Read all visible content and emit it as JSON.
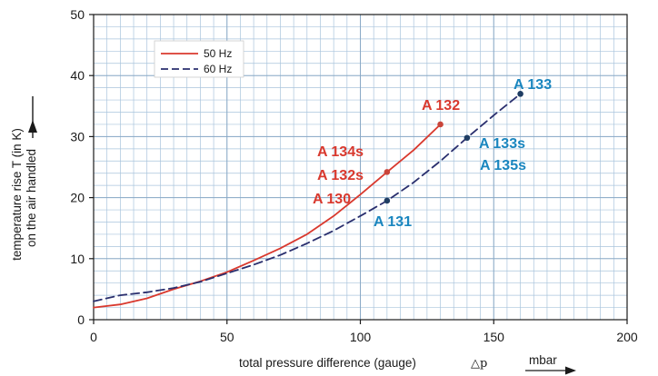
{
  "chart_data": {
    "type": "line",
    "title": "",
    "xlabel": "total pressure difference (gauge)",
    "xlabel_symbol": "△p",
    "xunit": "mbar",
    "ylabel_line1": "temperature rise T (in K)",
    "ylabel_line2": "on the air handled",
    "xlim": [
      0,
      200
    ],
    "ylim": [
      0,
      50
    ],
    "x_ticks": [
      0,
      50,
      100,
      150,
      200
    ],
    "y_ticks": [
      0,
      10,
      20,
      30,
      40,
      50
    ],
    "minor_grid_x_step": 5,
    "minor_grid_y_step": 2,
    "grid": true,
    "legend_placement": "top-left",
    "series": [
      {
        "name": "50 Hz",
        "style": "solid",
        "color": "#d9392e",
        "x": [
          0,
          10,
          20,
          30,
          40,
          50,
          60,
          70,
          80,
          90,
          100,
          110,
          120,
          130
        ],
        "y": [
          2,
          2.5,
          3.5,
          5,
          6.3,
          7.8,
          9.7,
          11.7,
          14,
          17,
          20.5,
          24.2,
          27.8,
          32
        ]
      },
      {
        "name": "60 Hz",
        "style": "dashed",
        "color": "#2a2f6e",
        "x": [
          0,
          10,
          20,
          30,
          40,
          50,
          60,
          70,
          80,
          90,
          100,
          110,
          120,
          130,
          140,
          150,
          160
        ],
        "y": [
          3,
          4,
          4.5,
          5.2,
          6.2,
          7.6,
          9,
          10.6,
          12.5,
          14.6,
          17,
          19.5,
          22.5,
          26,
          29.8,
          33.5,
          37
        ]
      }
    ],
    "points": [
      {
        "x": 110,
        "y": 24.2,
        "color": "#c9453a"
      },
      {
        "x": 130,
        "y": 32,
        "color": "#c9453a"
      },
      {
        "x": 110,
        "y": 19.5,
        "color": "#1f3d63"
      },
      {
        "x": 140,
        "y": 29.8,
        "color": "#1f3d63"
      },
      {
        "x": 160,
        "y": 37,
        "color": "#1f3d63"
      }
    ],
    "annotations": [
      {
        "text": "A 132",
        "color": "#d9392e"
      },
      {
        "text": "A 134s",
        "color": "#d9392e"
      },
      {
        "text": "A 132s",
        "color": "#d9392e"
      },
      {
        "text": "A 130",
        "color": "#d9392e"
      },
      {
        "text": "A 133",
        "color": "#1a86bf"
      },
      {
        "text": "A 133s",
        "color": "#1a86bf"
      },
      {
        "text": "A 135s",
        "color": "#1a86bf"
      },
      {
        "text": "A 131",
        "color": "#1a86bf"
      }
    ]
  }
}
